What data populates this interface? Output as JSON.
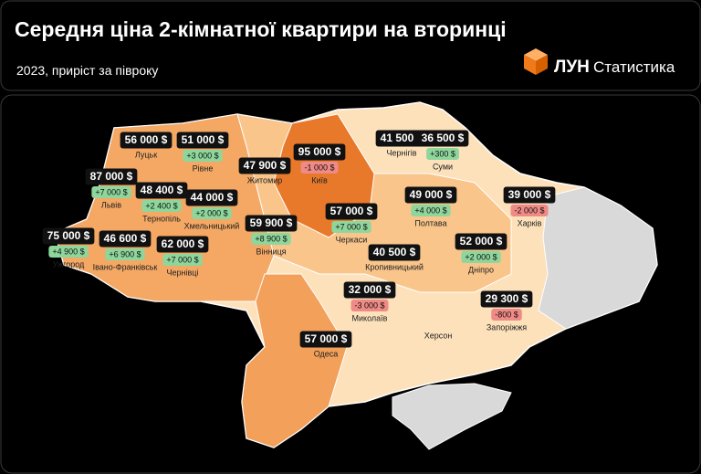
{
  "header": {
    "title": "Середня ціна 2-кімнатної квартири на вторинці",
    "subtitle": "2023, приріст за півроку",
    "brand": "ЛУН",
    "brand_section": "Статистика"
  },
  "regions": [
    {
      "name": "Луцьк",
      "price": "56 000 $"
    },
    {
      "name": "Рівне",
      "price": "51 000 $",
      "change": "+3 000 $"
    },
    {
      "name": "Житомир",
      "price": "47 900 $"
    },
    {
      "name": "Київ",
      "price": "95 000 $",
      "change": "-1 000 $"
    },
    {
      "name": "Чернігів",
      "price": "41 500 $"
    },
    {
      "name": "Суми",
      "price": "36 500 $",
      "change": "+300 $"
    },
    {
      "name": "Львів",
      "price": "87 000 $",
      "change": "+7 000 $"
    },
    {
      "name": "Тернопіль",
      "price": "48 400 $",
      "change": "+2 400 $"
    },
    {
      "name": "Хмельницький",
      "price": "44 000 $",
      "change": "+2 000 $"
    },
    {
      "name": "Полтава",
      "price": "49 000 $",
      "change": "+4 000 $"
    },
    {
      "name": "Харків",
      "price": "39 000 $",
      "change": "-2 000 $"
    },
    {
      "name": "Ужгород",
      "price": "75 000 $",
      "change": "+4 900 $"
    },
    {
      "name": "Івано-Франківськ",
      "price": "46 600 $",
      "change": "+6 900 $"
    },
    {
      "name": "Чернівці",
      "price": "62 000 $",
      "change": "+7 000 $"
    },
    {
      "name": "Вінниця",
      "price": "59 900 $",
      "change": "+8 900 $"
    },
    {
      "name": "Черкаси",
      "price": "57 000 $",
      "change": "+7 000 $"
    },
    {
      "name": "Кропивницький",
      "price": "40 500 $"
    },
    {
      "name": "Дніпро",
      "price": "52 000 $",
      "change": "+2 000 $"
    },
    {
      "name": "Миколаїв",
      "price": "32 000 $",
      "change": "-3 000 $"
    },
    {
      "name": "Запоріжжя",
      "price": "29 300 $",
      "change": "-800 $"
    },
    {
      "name": "Херсон"
    },
    {
      "name": "Одеса",
      "price": "57 000 $"
    }
  ]
}
